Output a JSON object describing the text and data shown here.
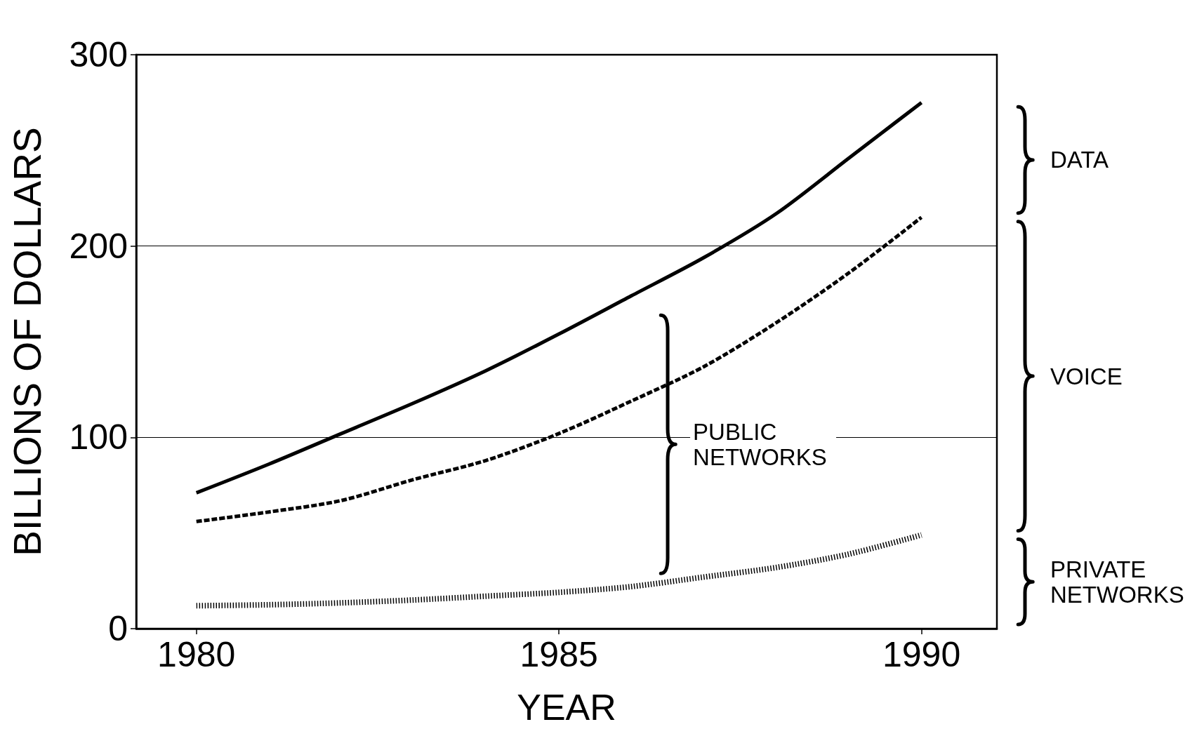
{
  "chart_data": {
    "type": "line",
    "xlabel": "YEAR",
    "ylabel": "BILLIONS OF DOLLARS",
    "x": [
      1980,
      1981,
      1982,
      1983,
      1984,
      1985,
      1986,
      1987,
      1988,
      1989,
      1990
    ],
    "series": [
      {
        "color": "#000000",
        "line_style": "solid",
        "values": [
          71,
          86,
          102,
          118,
          135,
          154,
          174,
          194,
          217,
          246,
          275
        ]
      },
      {
        "color": "#000000",
        "line_style": "dashed",
        "values": [
          56,
          61,
          67,
          78,
          88,
          102,
          119,
          137,
          160,
          186,
          215
        ]
      },
      {
        "color": "#000000",
        "line_style": "dotted",
        "values": [
          12,
          12.5,
          13.5,
          15,
          17,
          19,
          22,
          27,
          32,
          39,
          49
        ]
      }
    ],
    "xlim": [
      1979.17,
      1991.04
    ],
    "xticks": [
      1980,
      1985,
      1990
    ],
    "ylim": [
      0,
      300
    ],
    "yticks": [
      0,
      100,
      200,
      300
    ],
    "grid": "y",
    "marker": "none",
    "annotations": [
      "DATA",
      "VOICE",
      "PRIVATE NETWORKS",
      "PUBLIC NETWORKS"
    ]
  }
}
